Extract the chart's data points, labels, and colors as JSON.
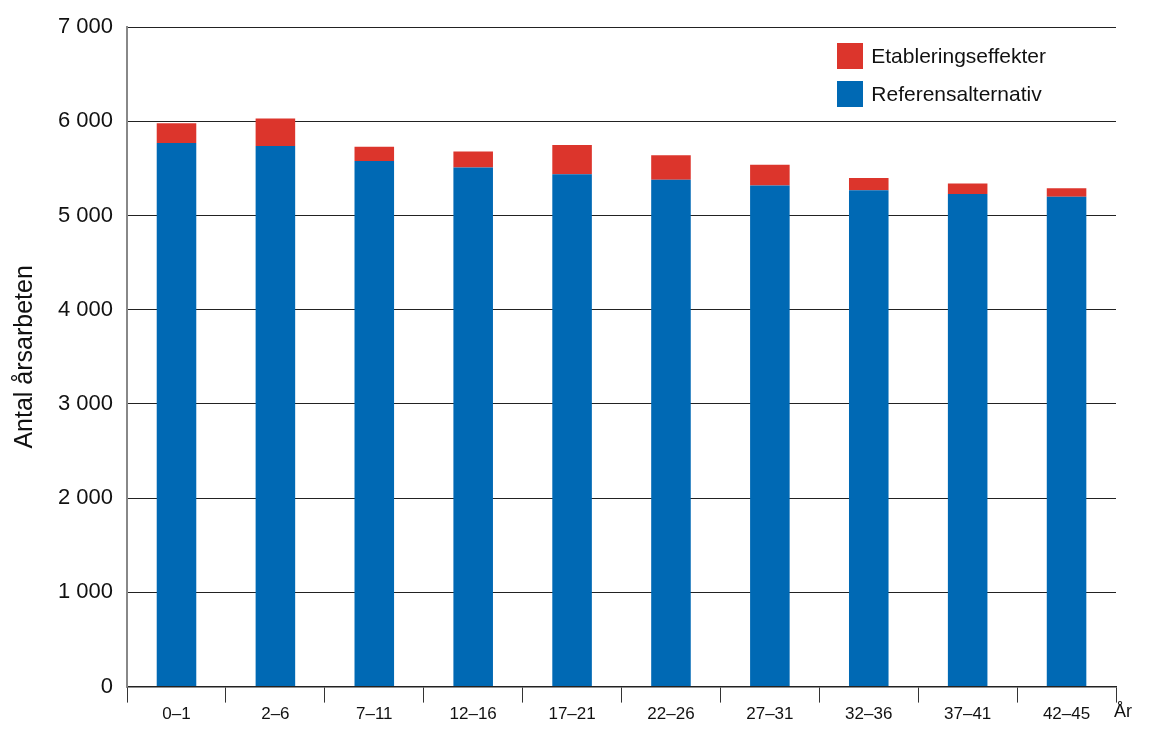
{
  "chart_data": {
    "type": "bar",
    "stacked": true,
    "ylabel": "Antal årsarbeten",
    "xlabel": "År",
    "categories": [
      "0–1",
      "2–6",
      "7–11",
      "12–16",
      "17–21",
      "22–26",
      "27–31",
      "32–36",
      "37–41",
      "42–45"
    ],
    "series": [
      {
        "name": "Referensalternativ",
        "color": "#0069b4",
        "values": [
          5770,
          5740,
          5580,
          5510,
          5440,
          5380,
          5320,
          5270,
          5230,
          5200
        ]
      },
      {
        "name": "Etableringseffekter",
        "color": "#dc352c",
        "values": [
          210,
          290,
          150,
          170,
          310,
          260,
          220,
          130,
          110,
          90
        ]
      }
    ],
    "ylim": [
      0,
      7000
    ],
    "yticks": [
      {
        "value": 0,
        "label": "0"
      },
      {
        "value": 1000,
        "label": "1 000"
      },
      {
        "value": 2000,
        "label": "2 000"
      },
      {
        "value": 3000,
        "label": "3 000"
      },
      {
        "value": 4000,
        "label": "4 000"
      },
      {
        "value": 5000,
        "label": "5 000"
      },
      {
        "value": 6000,
        "label": "6 000"
      },
      {
        "value": 7000,
        "label": "7 000"
      }
    ],
    "grid": "y",
    "legend": "top right"
  }
}
